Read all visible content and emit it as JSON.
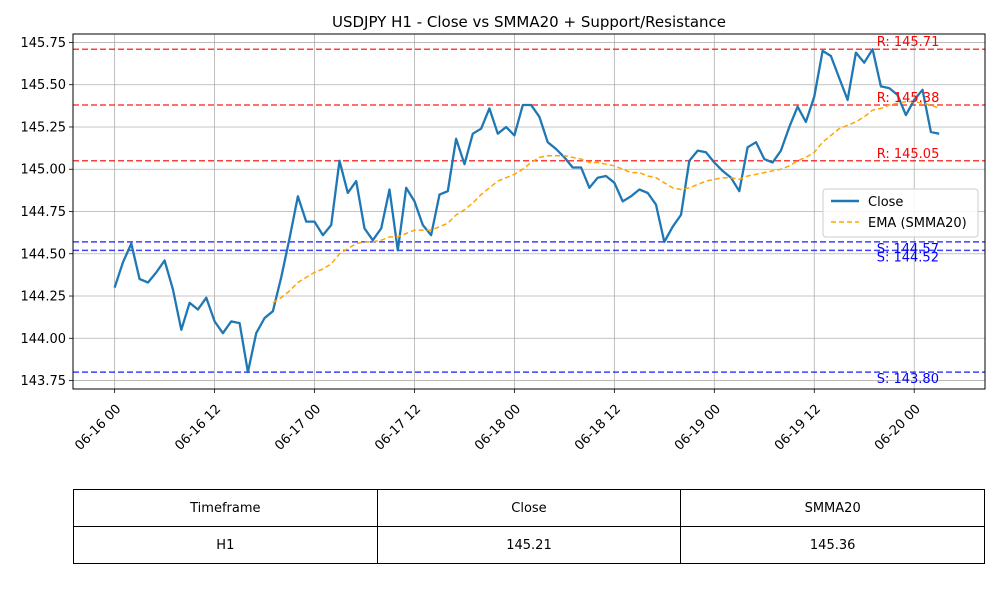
{
  "chart_data": {
    "type": "line",
    "title": "USDJPY H1 - Close vs SMMA20 + Support/Resistance",
    "xlabel": "",
    "ylabel": "",
    "x_ticks": [
      "06-16 00",
      "06-16 12",
      "06-17 00",
      "06-17 12",
      "06-18 00",
      "06-18 12",
      "06-19 00",
      "06-19 12",
      "06-20 00"
    ],
    "y_ticks": [
      "143.75",
      "144.00",
      "144.25",
      "144.50",
      "144.75",
      "145.00",
      "145.25",
      "145.50",
      "145.75"
    ],
    "xlim_hours": [
      -5,
      104.5
    ],
    "ylim": [
      143.7,
      145.8
    ],
    "grid": true,
    "legend_position": "center-right",
    "series": [
      {
        "name": "Close",
        "color": "#1f77b4",
        "style": "solid",
        "x_hours": [
          0,
          1,
          2,
          3,
          4,
          5,
          6,
          7,
          8,
          9,
          10,
          11,
          12,
          13,
          14,
          15,
          16,
          17,
          18,
          19,
          20,
          21,
          22,
          23,
          24,
          25,
          26,
          27,
          28,
          29,
          30,
          31,
          32,
          33,
          34,
          35,
          36,
          37,
          38,
          39,
          40,
          41,
          42,
          43,
          44,
          45,
          46,
          47,
          48,
          49,
          50,
          51,
          52,
          53,
          54,
          55,
          56,
          57,
          58,
          59,
          60,
          61,
          62,
          63,
          64,
          65,
          66,
          67,
          68,
          69,
          70,
          71,
          72,
          73,
          74,
          75,
          76,
          77,
          78,
          79,
          80,
          81,
          82,
          83,
          84,
          85,
          86,
          87,
          88,
          89,
          90,
          91,
          92,
          93,
          94,
          95,
          96,
          97,
          98,
          99
        ],
        "values": [
          144.3,
          144.45,
          144.56,
          144.35,
          144.33,
          144.39,
          144.46,
          144.29,
          144.05,
          144.21,
          144.17,
          144.24,
          144.1,
          144.03,
          144.1,
          144.09,
          143.8,
          144.03,
          144.12,
          144.16,
          144.36,
          144.59,
          144.84,
          144.69,
          144.69,
          144.61,
          144.67,
          145.05,
          144.86,
          144.93,
          144.65,
          144.58,
          144.65,
          144.88,
          144.52,
          144.89,
          144.81,
          144.67,
          144.61,
          144.85,
          144.87,
          145.18,
          145.03,
          145.21,
          145.24,
          145.36,
          145.21,
          145.25,
          145.2,
          145.38,
          145.38,
          145.31,
          145.16,
          145.12,
          145.07,
          145.01,
          145.01,
          144.89,
          144.95,
          144.96,
          144.92,
          144.81,
          144.84,
          144.88,
          144.86,
          144.79,
          144.57,
          144.66,
          144.73,
          145.05,
          145.11,
          145.1,
          145.04,
          144.99,
          144.95,
          144.87,
          145.13,
          145.16,
          145.06,
          145.04,
          145.11,
          145.25,
          145.37,
          145.28,
          145.43,
          145.7,
          145.67,
          145.54,
          145.41,
          145.69,
          145.63,
          145.71,
          145.49,
          145.48,
          145.44,
          145.32,
          145.41,
          145.47,
          145.22,
          145.21
        ]
      },
      {
        "name": "EMA (SMMA20)",
        "color": "#ffa500",
        "style": "dashed",
        "x_hours": [
          19,
          20,
          21,
          22,
          23,
          24,
          25,
          26,
          27,
          28,
          29,
          30,
          31,
          32,
          33,
          34,
          35,
          36,
          37,
          38,
          39,
          40,
          41,
          42,
          43,
          44,
          45,
          46,
          47,
          48,
          49,
          50,
          51,
          52,
          53,
          54,
          55,
          56,
          57,
          58,
          59,
          60,
          61,
          62,
          63,
          64,
          65,
          66,
          67,
          68,
          69,
          70,
          71,
          72,
          73,
          74,
          75,
          76,
          77,
          78,
          79,
          80,
          81,
          82,
          83,
          84,
          85,
          86,
          87,
          88,
          89,
          90,
          91,
          92,
          93,
          94,
          95,
          96,
          97,
          98,
          99
        ],
        "values": [
          144.21,
          144.24,
          144.28,
          144.33,
          144.36,
          144.39,
          144.41,
          144.44,
          144.5,
          144.53,
          144.56,
          144.57,
          144.57,
          144.58,
          144.6,
          144.6,
          144.62,
          144.64,
          144.64,
          144.64,
          144.66,
          144.68,
          144.73,
          144.76,
          144.8,
          144.85,
          144.89,
          144.93,
          144.95,
          144.97,
          145.0,
          145.04,
          145.07,
          145.08,
          145.08,
          145.08,
          145.07,
          145.06,
          145.04,
          145.04,
          145.03,
          145.02,
          145.0,
          144.98,
          144.98,
          144.96,
          144.95,
          144.92,
          144.89,
          144.88,
          144.89,
          144.91,
          144.93,
          144.94,
          144.95,
          144.95,
          144.94,
          144.96,
          144.97,
          144.98,
          144.99,
          145.0,
          145.02,
          145.05,
          145.07,
          145.1,
          145.16,
          145.2,
          145.24,
          145.26,
          145.28,
          145.31,
          145.35,
          145.36,
          145.38,
          145.39,
          145.4,
          145.4,
          145.39,
          145.38,
          145.36
        ]
      }
    ],
    "levels": [
      {
        "kind": "resistance",
        "value": 145.71,
        "label": "R: 145.71",
        "color": "#ff0000"
      },
      {
        "kind": "resistance",
        "value": 145.38,
        "label": "R: 145.38",
        "color": "#ff0000"
      },
      {
        "kind": "resistance",
        "value": 145.05,
        "label": "R: 145.05",
        "color": "#ff0000"
      },
      {
        "kind": "support",
        "value": 144.57,
        "label": "S: 144.57",
        "color": "#0000ff"
      },
      {
        "kind": "support",
        "value": 144.52,
        "label": "S: 144.52",
        "color": "#0000ff"
      },
      {
        "kind": "support",
        "value": 143.8,
        "label": "S: 143.80",
        "color": "#0000ff"
      }
    ]
  },
  "table": {
    "headers": [
      "Timeframe",
      "Close",
      "SMMA20"
    ],
    "row": [
      "H1",
      "145.21",
      "145.36"
    ]
  }
}
